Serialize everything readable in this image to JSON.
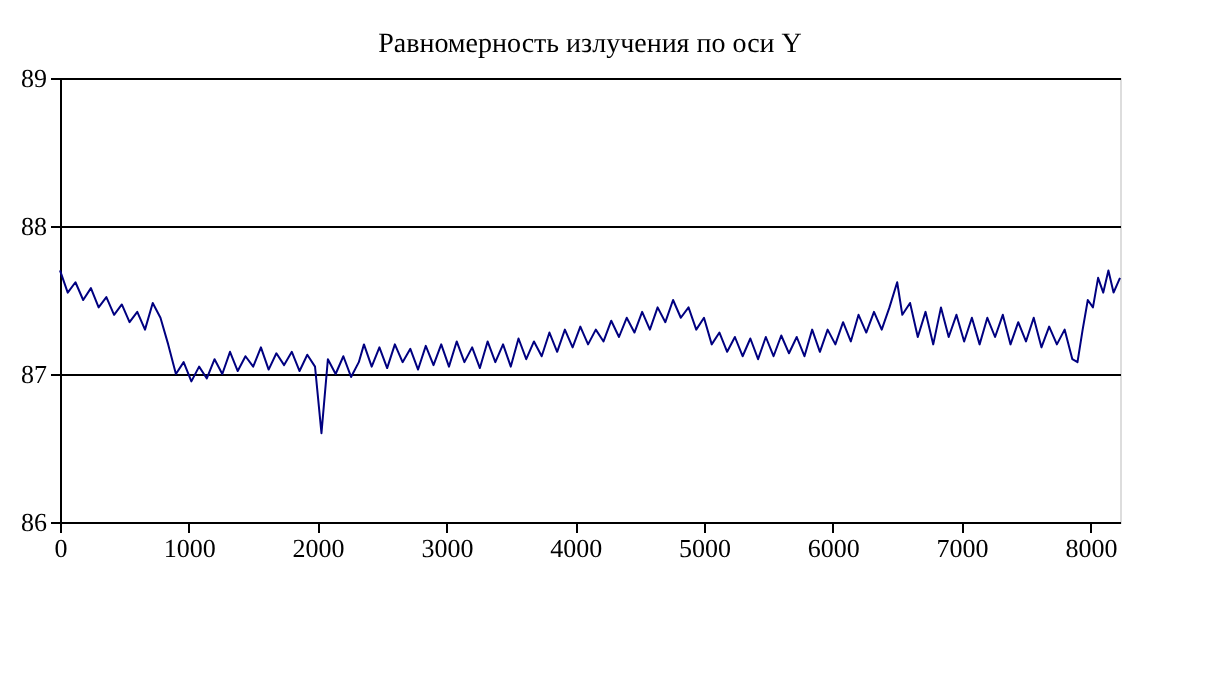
{
  "chart_data": {
    "type": "line",
    "title": "Равномерность излучения по оси Y",
    "x": [
      0,
      60,
      120,
      180,
      240,
      300,
      360,
      420,
      480,
      540,
      600,
      660,
      720,
      780,
      840,
      900,
      960,
      1020,
      1080,
      1140,
      1200,
      1260,
      1320,
      1380,
      1440,
      1500,
      1560,
      1620,
      1680,
      1740,
      1800,
      1860,
      1920,
      1980,
      2030,
      2080,
      2140,
      2200,
      2260,
      2320,
      2360,
      2420,
      2480,
      2540,
      2600,
      2660,
      2720,
      2780,
      2840,
      2900,
      2960,
      3020,
      3080,
      3140,
      3200,
      3260,
      3320,
      3380,
      3440,
      3500,
      3560,
      3620,
      3680,
      3740,
      3800,
      3860,
      3920,
      3980,
      4040,
      4100,
      4160,
      4220,
      4280,
      4340,
      4400,
      4460,
      4520,
      4580,
      4640,
      4700,
      4760,
      4820,
      4880,
      4940,
      5000,
      5060,
      5120,
      5180,
      5240,
      5300,
      5360,
      5420,
      5480,
      5540,
      5600,
      5660,
      5720,
      5780,
      5840,
      5900,
      5960,
      6020,
      6080,
      6140,
      6200,
      6260,
      6320,
      6380,
      6440,
      6500,
      6540,
      6600,
      6660,
      6720,
      6780,
      6840,
      6900,
      6960,
      7020,
      7080,
      7140,
      7200,
      7260,
      7320,
      7380,
      7440,
      7500,
      7560,
      7620,
      7680,
      7740,
      7800,
      7860,
      7900,
      7940,
      7980,
      8020,
      8060,
      8100,
      8140,
      8180,
      8230
    ],
    "series": [
      {
        "color": "#000080",
        "values": [
          87.7,
          87.55,
          87.62,
          87.5,
          87.58,
          87.45,
          87.52,
          87.4,
          87.47,
          87.35,
          87.42,
          87.3,
          87.48,
          87.38,
          87.2,
          87.0,
          87.08,
          86.95,
          87.05,
          86.97,
          87.1,
          87.0,
          87.15,
          87.02,
          87.12,
          87.05,
          87.18,
          87.03,
          87.14,
          87.06,
          87.15,
          87.02,
          87.13,
          87.05,
          86.6,
          87.1,
          87.0,
          87.12,
          86.98,
          87.08,
          87.2,
          87.05,
          87.18,
          87.04,
          87.2,
          87.08,
          87.17,
          87.03,
          87.19,
          87.06,
          87.2,
          87.05,
          87.22,
          87.08,
          87.18,
          87.04,
          87.22,
          87.08,
          87.2,
          87.05,
          87.24,
          87.1,
          87.22,
          87.12,
          87.28,
          87.15,
          87.3,
          87.18,
          87.32,
          87.2,
          87.3,
          87.22,
          87.36,
          87.25,
          87.38,
          87.28,
          87.42,
          87.3,
          87.45,
          87.35,
          87.5,
          87.38,
          87.45,
          87.3,
          87.38,
          87.2,
          87.28,
          87.15,
          87.25,
          87.12,
          87.24,
          87.1,
          87.25,
          87.12,
          87.26,
          87.14,
          87.25,
          87.12,
          87.3,
          87.15,
          87.3,
          87.2,
          87.35,
          87.22,
          87.4,
          87.28,
          87.42,
          87.3,
          87.45,
          87.62,
          87.4,
          87.48,
          87.25,
          87.42,
          87.2,
          87.45,
          87.25,
          87.4,
          87.22,
          87.38,
          87.2,
          87.38,
          87.25,
          87.4,
          87.2,
          87.35,
          87.22,
          87.38,
          87.18,
          87.32,
          87.2,
          87.3,
          87.1,
          87.08,
          87.3,
          87.5,
          87.45,
          87.65,
          87.55,
          87.7,
          87.55,
          87.65
        ]
      }
    ],
    "xlim": [
      0,
      8230
    ],
    "xticks": [
      0,
      1000,
      2000,
      3000,
      4000,
      5000,
      6000,
      7000,
      8000
    ],
    "ylim": [
      86,
      89
    ],
    "yticks": [
      86,
      87,
      88,
      89
    ],
    "grid": "y",
    "marker": "none",
    "line_style": "solid"
  }
}
